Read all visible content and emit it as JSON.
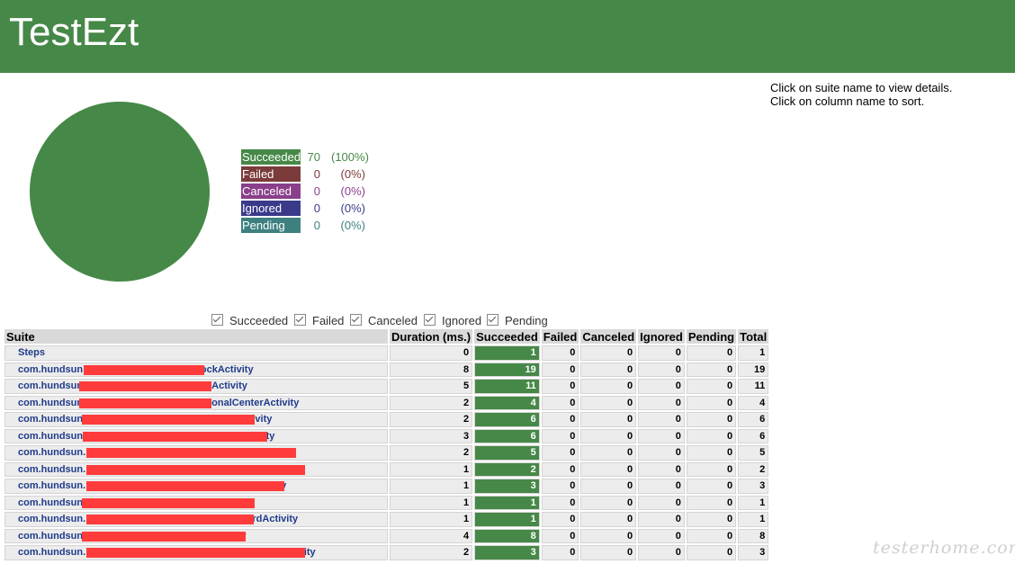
{
  "app": {
    "title": "TestEzt"
  },
  "hints": [
    "Click on suite name to view details.",
    "Click on column name to sort."
  ],
  "colors": {
    "header": "#468847",
    "succeeded": "#468847",
    "failed": "#7b3b3b",
    "canceled": "#8a3f8a",
    "ignored": "#3a3a8a",
    "pending": "#3e8080"
  },
  "summary": [
    {
      "key": "succeeded",
      "label": "Succeeded",
      "count": "70",
      "percent": "(100%)",
      "color": "#468847",
      "text_color": "#468847"
    },
    {
      "key": "failed",
      "label": "Failed",
      "count": "0",
      "percent": "(0%)",
      "color": "#7b3b3b",
      "text_color": "#7b3b3b"
    },
    {
      "key": "canceled",
      "label": "Canceled",
      "count": "0",
      "percent": "(0%)",
      "color": "#8a3f8a",
      "text_color": "#8a3f8a"
    },
    {
      "key": "ignored",
      "label": "Ignored",
      "count": "0",
      "percent": "(0%)",
      "color": "#3a3a8a",
      "text_color": "#3a3a8a"
    },
    {
      "key": "pending",
      "label": "Pending",
      "count": "0",
      "percent": "(0%)",
      "color": "#3e8080",
      "text_color": "#3e8080"
    }
  ],
  "filters": [
    {
      "label": "Succeeded",
      "checked": true
    },
    {
      "label": "Failed",
      "checked": true
    },
    {
      "label": "Canceled",
      "checked": true
    },
    {
      "label": "Ignored",
      "checked": true
    },
    {
      "label": "Pending",
      "checked": true
    }
  ],
  "table": {
    "columns": [
      "Suite",
      "Duration (ms.)",
      "Succeeded",
      "Failed",
      "Canceled",
      "Ignored",
      "Pending",
      "Total"
    ],
    "rows": [
      {
        "suite": "Steps",
        "duration": "0",
        "succeeded": "1",
        "failed": "0",
        "canceled": "0",
        "ignored": "0",
        "pending": "0",
        "total": "1"
      },
      {
        "suite": "com.hundsun                        g-EditMyStockActivity",
        "duration": "8",
        "succeeded": "19",
        "failed": "0",
        "canceled": "0",
        "ignored": "0",
        "pending": "0",
        "total": "19"
      },
      {
        "suite": "com.hundsun                                  HsMainActivity",
        "duration": "5",
        "succeeded": "11",
        "failed": "0",
        "canceled": "0",
        "ignored": "0",
        "pending": "0",
        "total": "11"
      },
      {
        "suite": "com.hundsun                                  MyPersonalCenterActivity",
        "duration": "2",
        "succeeded": "4",
        "failed": "0",
        "canceled": "0",
        "ignored": "0",
        "pending": "0",
        "total": "4"
      },
      {
        "suite": "com.hundsun                                              StockActivity",
        "duration": "2",
        "succeeded": "6",
        "failed": "0",
        "canceled": "0",
        "ignored": "0",
        "pending": "0",
        "total": "6"
      },
      {
        "suite": "com.hundsun                                               LoginActivity",
        "duration": "3",
        "succeeded": "6",
        "failed": "0",
        "canceled": "0",
        "ignored": "0",
        "pending": "0",
        "total": "6"
      },
      {
        "suite": "com.hundsun.                                                    SmartActivity",
        "duration": "2",
        "succeeded": "5",
        "failed": "0",
        "canceled": "0",
        "ignored": "0",
        "pending": "0",
        "total": "5"
      },
      {
        "suite": "com.hundsun.                                                   Activity",
        "duration": "1",
        "succeeded": "2",
        "failed": "0",
        "canceled": "0",
        "ignored": "0",
        "pending": "0",
        "total": "2"
      },
      {
        "suite": "com.hundsun.                                                   NodeActivity",
        "duration": "1",
        "succeeded": "3",
        "failed": "0",
        "canceled": "0",
        "ignored": "0",
        "pending": "0",
        "total": "3"
      },
      {
        "suite": "com.hundsun                                              ctivity",
        "duration": "1",
        "succeeded": "1",
        "failed": "0",
        "canceled": "0",
        "ignored": "0",
        "pending": "0",
        "total": "1"
      },
      {
        "suite": "com.hundsun.                                            etPasswordActivity",
        "duration": "1",
        "succeeded": "1",
        "failed": "0",
        "canceled": "0",
        "ignored": "0",
        "pending": "0",
        "total": "1"
      },
      {
        "suite": "com.hundsun                                         ginActivity",
        "duration": "4",
        "succeeded": "8",
        "failed": "0",
        "canceled": "0",
        "ignored": "0",
        "pending": "0",
        "total": "8"
      },
      {
        "suite": "com.hundsun.                                                         NumberActivity",
        "duration": "2",
        "succeeded": "3",
        "failed": "0",
        "canceled": "0",
        "ignored": "0",
        "pending": "0",
        "total": "3"
      }
    ]
  },
  "watermark": "testerhome.com"
}
